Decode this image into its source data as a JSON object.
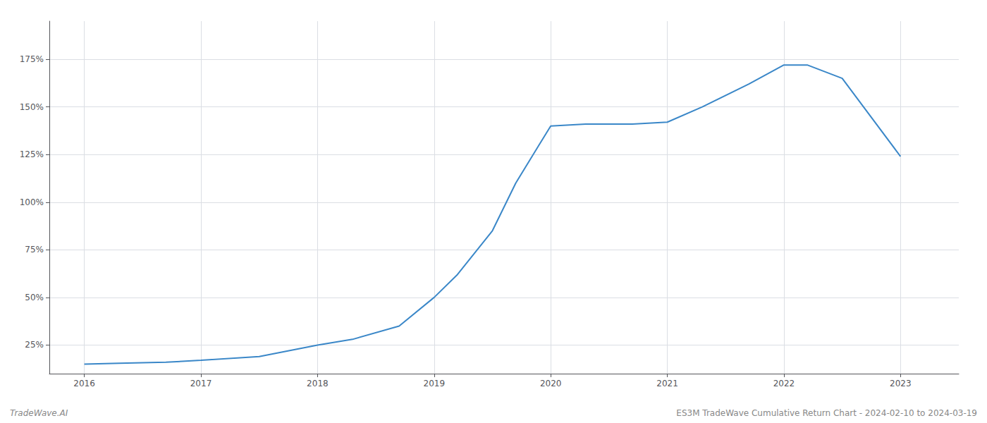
{
  "chart_data": {
    "type": "line",
    "x": [
      2016,
      2016.3,
      2016.7,
      2017,
      2017.5,
      2018,
      2018.3,
      2018.7,
      2019,
      2019.2,
      2019.5,
      2019.7,
      2020,
      2020.3,
      2020.7,
      2021,
      2021.3,
      2021.7,
      2022,
      2022.2,
      2022.5,
      2023
    ],
    "values": [
      15,
      15.5,
      16,
      17,
      19,
      25,
      28,
      35,
      50,
      62,
      85,
      110,
      140,
      141,
      141,
      142,
      150,
      162,
      172,
      172,
      165,
      124
    ],
    "color": "#3a87c8",
    "xlim": [
      2015.7,
      2023.5
    ],
    "ylim": [
      10,
      195
    ],
    "xticks": [
      2016,
      2017,
      2018,
      2019,
      2020,
      2021,
      2022,
      2023
    ],
    "yticks": [
      {
        "value": 25,
        "label": "25%"
      },
      {
        "value": 50,
        "label": "50%"
      },
      {
        "value": 75,
        "label": "75%"
      },
      {
        "value": 100,
        "label": "100%"
      },
      {
        "value": 125,
        "label": "125%"
      },
      {
        "value": 150,
        "label": "150%"
      },
      {
        "value": 175,
        "label": "175%"
      }
    ],
    "grid": true,
    "annotations": [
      "TradeWave.AI",
      "ES3M TradeWave Cumulative Return Chart - 2024-02-10 to 2024-03-19"
    ]
  }
}
